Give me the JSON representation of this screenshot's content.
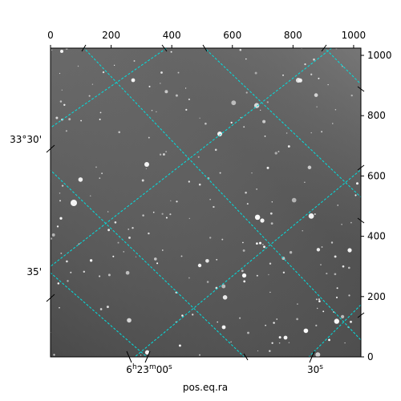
{
  "chart_data": {
    "type": "scatter",
    "description_free": true,
    "xlabel": "pos.eq.ra",
    "ylabel": "",
    "pixel_axes": {
      "x_top": {
        "range": [
          0,
          1024
        ],
        "ticks": [
          0,
          200,
          400,
          600,
          800,
          1000
        ]
      },
      "y_right": {
        "range": [
          0,
          1024
        ],
        "ticks": [
          0,
          200,
          400,
          600,
          800,
          1000
        ]
      }
    },
    "world_axes": {
      "ra_ticks": [
        {
          "label": "6h23m00s",
          "parts": [
            "6",
            "h",
            "23",
            "m",
            "00",
            "s"
          ]
        },
        {
          "label": "30s",
          "parts": [
            "30",
            "s"
          ]
        }
      ],
      "dec_ticks": [
        {
          "label": "33°30'"
        },
        {
          "label": "35'"
        }
      ]
    },
    "grid": true,
    "grid_color": "#00e0e0",
    "image_colormap": "gray"
  }
}
